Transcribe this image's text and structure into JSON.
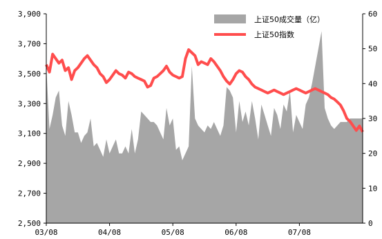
{
  "chart_data": {
    "type": "line",
    "title": "",
    "xlabel": "",
    "ylabel": "",
    "y2label": "",
    "x_ticks": [
      "03/08",
      "04/08",
      "05/08",
      "06/08",
      "07/08"
    ],
    "x_range": [
      0,
      100
    ],
    "ylim": [
      2500,
      3900
    ],
    "y_ticks": [
      "3,900",
      "3,700",
      "3,500",
      "3,300",
      "3,100",
      "2,900",
      "2,700",
      "2,500"
    ],
    "y_tick_values": [
      3900,
      3700,
      3500,
      3300,
      3100,
      2900,
      2700,
      2500
    ],
    "y2lim": [
      0,
      60
    ],
    "y2_ticks": [
      "60",
      "50",
      "40",
      "30",
      "20",
      "10",
      "0"
    ],
    "y2_tick_values": [
      60,
      50,
      40,
      30,
      20,
      10,
      0
    ],
    "legend_position": "top-right",
    "series": [
      {
        "name": "上证50成交量（亿）",
        "kind": "area",
        "axis": "right",
        "color": "#a6a6a6",
        "x": [
          0,
          1,
          2,
          3,
          4,
          5,
          6,
          7,
          8,
          9,
          10,
          11,
          12,
          13,
          14,
          15,
          16,
          17,
          18,
          19,
          20,
          21,
          22,
          23,
          24,
          25,
          26,
          27,
          28,
          29,
          30,
          31,
          32,
          33,
          34,
          35,
          36,
          37,
          38,
          39,
          40,
          41,
          42,
          43,
          44,
          45,
          46,
          47,
          48,
          49,
          50,
          51,
          52,
          53,
          54,
          55,
          56,
          57,
          58,
          59,
          60,
          61,
          62,
          63,
          64,
          65,
          66,
          67,
          68,
          69,
          70,
          71,
          72,
          73,
          74,
          75,
          76,
          77,
          78,
          79,
          80,
          81,
          82,
          83,
          84,
          85,
          86,
          87,
          88,
          89,
          90,
          91,
          92,
          93,
          94,
          95,
          96,
          97,
          98,
          99,
          100
        ],
        "values": [
          45,
          27,
          31,
          36,
          38,
          28,
          25,
          35,
          31,
          26,
          26,
          23,
          25,
          26,
          30,
          22,
          23,
          21,
          19,
          24,
          20,
          22,
          24,
          20,
          20,
          22,
          20,
          27,
          20,
          24,
          32,
          31,
          30,
          29,
          29,
          28,
          26,
          24,
          33,
          28,
          30,
          21,
          22,
          18,
          20,
          22,
          45,
          30,
          28,
          27,
          26,
          28,
          27,
          29,
          27,
          25,
          28,
          39,
          38,
          36,
          26,
          35,
          29,
          32,
          28,
          35,
          30,
          24,
          34,
          31,
          28,
          25,
          33,
          31,
          27,
          34,
          32,
          38,
          26,
          31,
          29,
          27,
          34,
          36,
          40,
          45,
          50,
          55,
          33,
          30,
          28,
          27,
          28,
          29,
          29,
          29,
          30,
          30,
          30,
          30,
          30
        ]
      },
      {
        "name": "上证50指数",
        "kind": "line",
        "axis": "left",
        "color": "#ff4d4d",
        "x": [
          0,
          1,
          2,
          3,
          4,
          5,
          6,
          7,
          8,
          9,
          10,
          11,
          12,
          13,
          14,
          15,
          16,
          17,
          18,
          19,
          20,
          21,
          22,
          23,
          24,
          25,
          26,
          27,
          28,
          29,
          30,
          31,
          32,
          33,
          34,
          35,
          36,
          37,
          38,
          39,
          40,
          41,
          42,
          43,
          44,
          45,
          46,
          47,
          48,
          49,
          50,
          51,
          52,
          53,
          54,
          55,
          56,
          57,
          58,
          59,
          60,
          61,
          62,
          63,
          64,
          65,
          66,
          67,
          68,
          69,
          70,
          71,
          72,
          73,
          74,
          75,
          76,
          77,
          78,
          79,
          80,
          81,
          82,
          83,
          84,
          85,
          86,
          87,
          88,
          89,
          90,
          91,
          92,
          93,
          94,
          95,
          96,
          97,
          98,
          99,
          100
        ],
        "values": [
          3560,
          3510,
          3630,
          3600,
          3570,
          3590,
          3520,
          3540,
          3460,
          3520,
          3540,
          3570,
          3600,
          3620,
          3590,
          3560,
          3540,
          3500,
          3480,
          3440,
          3460,
          3490,
          3520,
          3500,
          3490,
          3470,
          3510,
          3500,
          3480,
          3470,
          3460,
          3450,
          3410,
          3420,
          3470,
          3480,
          3500,
          3520,
          3550,
          3510,
          3490,
          3480,
          3470,
          3480,
          3600,
          3660,
          3640,
          3620,
          3560,
          3580,
          3570,
          3560,
          3600,
          3580,
          3550,
          3520,
          3480,
          3450,
          3430,
          3460,
          3500,
          3520,
          3510,
          3480,
          3460,
          3430,
          3410,
          3400,
          3390,
          3380,
          3370,
          3380,
          3390,
          3380,
          3370,
          3360,
          3370,
          3380,
          3390,
          3400,
          3390,
          3380,
          3370,
          3380,
          3390,
          3400,
          3390,
          3380,
          3370,
          3360,
          3340,
          3330,
          3310,
          3290,
          3250,
          3200,
          3180,
          3150,
          3120,
          3150,
          3110
        ]
      }
    ]
  }
}
